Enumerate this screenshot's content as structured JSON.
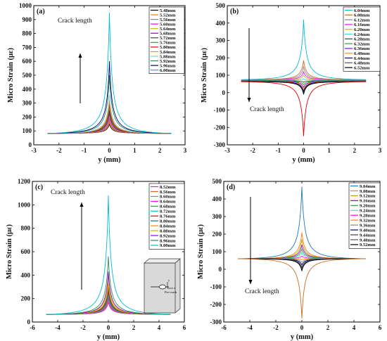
{
  "figure": {
    "panels": [
      {
        "tag": "(a)",
        "ylabel": "Micro Strain (με)",
        "xlabel": "y (mm)",
        "annotation": "Crack length"
      },
      {
        "tag": "(b)",
        "ylabel": "Micro Strain (με)",
        "xlabel": "y (mm)",
        "annotation": "Crack length"
      },
      {
        "tag": "(c)",
        "ylabel": "Micro Strain (με)",
        "xlabel": "y (mm)",
        "annotation": "Crack length",
        "inset_labels": [
          "y",
          "x",
          "Pre-crack"
        ]
      },
      {
        "tag": "(d)",
        "ylabel": "Micro Strain (με)",
        "xlabel": "y (mm)",
        "annotation": "Crack length"
      }
    ]
  },
  "chart_data": [
    {
      "type": "line",
      "panel": "(a)",
      "xlabel": "y (mm)",
      "ylabel": "Micro Strain (με)",
      "xlim": [
        -3,
        3
      ],
      "ylim": [
        0,
        1000
      ],
      "xticks": [
        -3,
        -2,
        -1,
        0,
        1,
        2,
        3
      ],
      "yticks": [
        0,
        100,
        200,
        300,
        400,
        500,
        600,
        700,
        800,
        900,
        1000
      ],
      "grid": false,
      "legend_position": "top-right",
      "annotation": {
        "text": "Crack length",
        "arrow": "up"
      },
      "x_extent": [
        -2.45,
        2.45
      ],
      "series": [
        {
          "name": "5.48mm",
          "color": "#000000",
          "peak": 150,
          "edge": 82
        },
        {
          "name": "5.52mm",
          "color": "#ff7f00",
          "peak": 165,
          "edge": 82
        },
        {
          "name": "5.56mm",
          "color": "#8a8a8a",
          "peak": 180,
          "edge": 82
        },
        {
          "name": "5.60mm",
          "color": "#ff00ff",
          "peak": 195,
          "edge": 82
        },
        {
          "name": "5.64mm",
          "color": "#bfbf00",
          "peak": 210,
          "edge": 82
        },
        {
          "name": "5.68mm",
          "color": "#9400d3",
          "peak": 230,
          "edge": 82
        },
        {
          "name": "5.72mm",
          "color": "#3f3f3f",
          "peak": 250,
          "edge": 82
        },
        {
          "name": "5.76mm",
          "color": "#2e9e3e",
          "peak": 280,
          "edge": 82
        },
        {
          "name": "5.80mm",
          "color": "#e00000",
          "peak": 300,
          "edge": 82
        },
        {
          "name": "5.84mm",
          "color": "#ff8c00",
          "peak": 320,
          "edge": 82
        },
        {
          "name": "5.88mm",
          "color": "#87ceeb",
          "peak": 360,
          "edge": 82
        },
        {
          "name": "5.92mm",
          "color": "#2e8b57",
          "peak": 500,
          "edge": 82
        },
        {
          "name": "5.96mm",
          "color": "#000080",
          "peak": 600,
          "edge": 82
        },
        {
          "name": "6.00mm",
          "color": "#00bcd4",
          "peak": 950,
          "edge": 82
        }
      ]
    },
    {
      "type": "line",
      "panel": "(b)",
      "xlabel": "y (mm)",
      "ylabel": "Micro Strain (με)",
      "xlim": [
        -3,
        3
      ],
      "ylim": [
        -300,
        500
      ],
      "xticks": [
        -3,
        -2,
        -1,
        0,
        1,
        2,
        3
      ],
      "yticks": [
        -300,
        -200,
        -100,
        0,
        100,
        200,
        300,
        400,
        500
      ],
      "grid": false,
      "legend_position": "top-right",
      "annotation": {
        "text": "Crack length",
        "arrow": "down"
      },
      "x_extent": [
        -2.45,
        2.45
      ],
      "series": [
        {
          "name": "6.04mm",
          "color": "#00bcd4",
          "peak": 420,
          "edge": 75
        },
        {
          "name": "6.08mm",
          "color": "#d2691e",
          "peak": 185,
          "edge": 74
        },
        {
          "name": "6.12mm",
          "color": "#8a8a8a",
          "peak": 150,
          "edge": 73
        },
        {
          "name": "6.16mm",
          "color": "#ff00ff",
          "peak": 120,
          "edge": 72
        },
        {
          "name": "6.20mm",
          "color": "#bfbf00",
          "peak": 100,
          "edge": 71
        },
        {
          "name": "6.24mm",
          "color": "#40e0d0",
          "peak": 80,
          "edge": 70
        },
        {
          "name": "6.28mm",
          "color": "#3f3f3f",
          "peak": 60,
          "edge": 69
        },
        {
          "name": "6.32mm",
          "color": "#2e9e3e",
          "peak": 45,
          "edge": 68
        },
        {
          "name": "6.36mm",
          "color": "#9400d3",
          "peak": 30,
          "edge": 67
        },
        {
          "name": "6.40mm",
          "color": "#ff8c00",
          "peak": 15,
          "edge": 66
        },
        {
          "name": "6.44mm",
          "color": "#000080",
          "peak": 5,
          "edge": 65
        },
        {
          "name": "6.48mm",
          "color": "#555555",
          "peak": -5,
          "edge": 64
        },
        {
          "name": "6.52mm",
          "color": "#000000",
          "peak": -10,
          "edge": 63
        },
        {
          "name": "(unlabeled)",
          "color": "#e00000",
          "peak": -250,
          "edge": 63
        }
      ]
    },
    {
      "type": "line",
      "panel": "(c)",
      "xlabel": "y (mm)",
      "ylabel": "Micro Strain (με)",
      "xlim": [
        -6,
        6
      ],
      "ylim": [
        0,
        1200
      ],
      "xticks": [
        -6,
        -4,
        -2,
        0,
        2,
        4,
        6
      ],
      "yticks": [
        0,
        200,
        400,
        600,
        800,
        1000,
        1200
      ],
      "grid": false,
      "legend_position": "top-right",
      "annotation": {
        "text": "Crack length",
        "arrow": "up"
      },
      "x_extent": [
        -4.9,
        4.9
      ],
      "series": [
        {
          "name": "8.52mm",
          "color": "#ff00ff",
          "peak": 170,
          "edge": 65
        },
        {
          "name": "8.56mm",
          "color": "#d2691e",
          "peak": 185,
          "edge": 65
        },
        {
          "name": "8.60mm",
          "color": "#8a8a8a",
          "peak": 200,
          "edge": 65
        },
        {
          "name": "8.64mm",
          "color": "#ff00ff",
          "peak": 215,
          "edge": 65
        },
        {
          "name": "8.68mm",
          "color": "#2e9e3e",
          "peak": 230,
          "edge": 65
        },
        {
          "name": "8.72mm",
          "color": "#00bcd4",
          "peak": 250,
          "edge": 65
        },
        {
          "name": "8.76mm",
          "color": "#e00000",
          "peak": 270,
          "edge": 65
        },
        {
          "name": "8.80mm",
          "color": "#008080",
          "peak": 300,
          "edge": 65
        },
        {
          "name": "8.84mm",
          "color": "#ff8c00",
          "peak": 330,
          "edge": 65
        },
        {
          "name": "8.88mm",
          "color": "#bfbf00",
          "peak": 380,
          "edge": 65
        },
        {
          "name": "8.92mm",
          "color": "#9400d3",
          "peak": 430,
          "edge": 65
        },
        {
          "name": "8.96mm",
          "color": "#2e8b57",
          "peak": 560,
          "edge": 65
        },
        {
          "name": "9.00mm",
          "color": "#00bcd4",
          "peak": 1080,
          "edge": 65
        }
      ]
    },
    {
      "type": "line",
      "panel": "(d)",
      "xlabel": "y (mm)",
      "ylabel": "Micro Strain (με)",
      "xlim": [
        -6,
        6
      ],
      "ylim": [
        -300,
        500
      ],
      "xticks": [
        -6,
        -4,
        -2,
        0,
        2,
        4,
        6
      ],
      "yticks": [
        -300,
        -200,
        -100,
        0,
        100,
        200,
        300,
        400,
        500
      ],
      "grid": false,
      "legend_position": "top-right",
      "annotation": {
        "text": "Crack length",
        "arrow": "down"
      },
      "x_extent": [
        -4.9,
        4.9
      ],
      "series": [
        {
          "name": "9.04mm",
          "color": "#1f77b4",
          "peak": 470,
          "edge": 60
        },
        {
          "name": "9.08mm",
          "color": "#ff7f0e",
          "peak": 210,
          "edge": 60
        },
        {
          "name": "9.12mm",
          "color": "#c9a100",
          "peak": 170,
          "edge": 60
        },
        {
          "name": "9.16mm",
          "color": "#9400d3",
          "peak": 140,
          "edge": 60
        },
        {
          "name": "9.20mm",
          "color": "#2e9e3e",
          "peak": 115,
          "edge": 60
        },
        {
          "name": "9.24mm",
          "color": "#40e0d0",
          "peak": 95,
          "edge": 60
        },
        {
          "name": "9.28mm",
          "color": "#ff00ff",
          "peak": 75,
          "edge": 60
        },
        {
          "name": "9.32mm",
          "color": "#ff8c00",
          "peak": 55,
          "edge": 60
        },
        {
          "name": "9.36mm",
          "color": "#8a8a8a",
          "peak": 40,
          "edge": 60
        },
        {
          "name": "9.40mm",
          "color": "#000080",
          "peak": 25,
          "edge": 60
        },
        {
          "name": "9.44mm",
          "color": "#3f3f3f",
          "peak": 10,
          "edge": 60
        },
        {
          "name": "9.48mm",
          "color": "#555555",
          "peak": 0,
          "edge": 60
        },
        {
          "name": "9.52mm",
          "color": "#000000",
          "peak": -10,
          "edge": 60
        },
        {
          "name": "(unlabeled)",
          "color": "#d2691e",
          "peak": -280,
          "edge": 60
        }
      ]
    }
  ]
}
